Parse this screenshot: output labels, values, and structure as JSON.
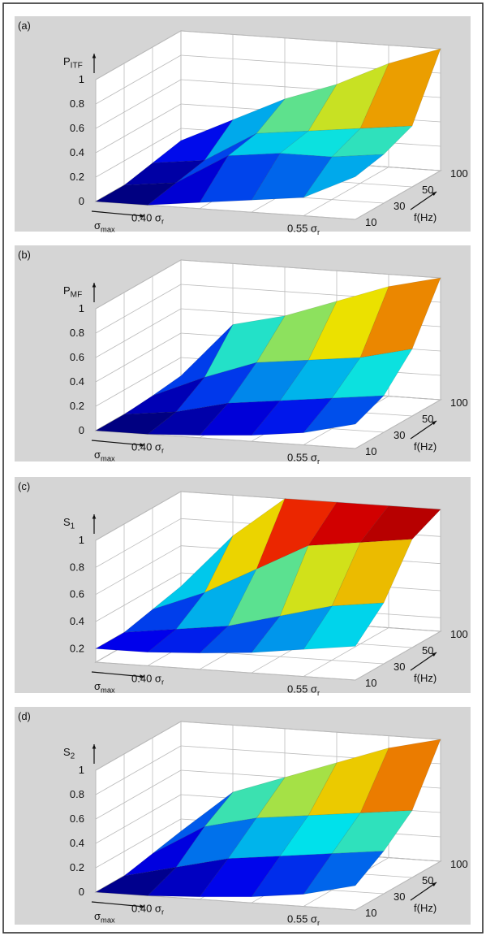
{
  "chart_data": [
    {
      "type": "surface",
      "panel_label": "(a)",
      "z_label": {
        "main": "P",
        "sub": "ITF"
      },
      "x_label": {
        "main": "σ",
        "sub": "max"
      },
      "x_categories": [
        null,
        {
          "main": "0.40 σ",
          "sub": "r"
        },
        null,
        null,
        {
          "main": "0.55 σ",
          "sub": "r"
        },
        null
      ],
      "y_label": "f(Hz)",
      "y_categories": [
        10,
        30,
        50,
        100
      ],
      "values": [
        [
          0,
          0,
          0.05,
          0.1,
          0.15,
          0.35
        ],
        [
          0,
          0.05,
          0.3,
          0.35,
          0.35,
          0.4
        ],
        [
          0.05,
          0.1,
          0.35,
          0.4,
          0.45,
          0.5
        ],
        [
          0.1,
          0.3,
          0.5,
          0.65,
          0.85,
          1.0
        ]
      ],
      "zlim": [
        0,
        1
      ],
      "zticks": [
        0,
        0.2,
        0.4,
        0.6,
        0.8,
        1
      ],
      "colormap": "jet",
      "grid": true
    },
    {
      "type": "surface",
      "panel_label": "(b)",
      "z_label": {
        "main": "P",
        "sub": "MF"
      },
      "x_label": {
        "main": "σ",
        "sub": "max"
      },
      "x_categories": [
        null,
        {
          "main": "0.40 σ",
          "sub": "r"
        },
        null,
        null,
        {
          "main": "0.55 σ",
          "sub": "r"
        },
        null
      ],
      "y_label": "f(Hz)",
      "y_categories": [
        10,
        30,
        50,
        100
      ],
      "values": [
        [
          0,
          0,
          0.02,
          0.05,
          0.1,
          0.2
        ],
        [
          0,
          0.05,
          0.15,
          0.2,
          0.25,
          0.3
        ],
        [
          0.02,
          0.2,
          0.35,
          0.4,
          0.45,
          0.55
        ],
        [
          0.05,
          0.5,
          0.6,
          0.75,
          0.9,
          1.0
        ]
      ],
      "zlim": [
        0,
        1
      ],
      "zticks": [
        0,
        0.2,
        0.4,
        0.6,
        0.8,
        1
      ],
      "colormap": "jet",
      "grid": true
    },
    {
      "type": "surface",
      "panel_label": "(c)",
      "z_label": {
        "main": "S",
        "sub": "1"
      },
      "x_label": {
        "main": "σ",
        "sub": "max"
      },
      "x_categories": [
        null,
        {
          "main": "0.40 σ",
          "sub": "r"
        },
        null,
        null,
        {
          "main": "0.55 σ",
          "sub": "r"
        },
        null
      ],
      "y_label": "f(Hz)",
      "y_categories": [
        10,
        30,
        50,
        100
      ],
      "values": [
        [
          0.2,
          0.2,
          0.22,
          0.25,
          0.3,
          0.35
        ],
        [
          0.2,
          0.25,
          0.3,
          0.4,
          0.5,
          0.55
        ],
        [
          0.25,
          0.4,
          0.6,
          0.8,
          0.85,
          0.9
        ],
        [
          0.3,
          0.7,
          1.0,
          1.0,
          1.0,
          1.0
        ]
      ],
      "zlim": [
        0.1,
        1
      ],
      "zticks": [
        0.2,
        0.4,
        0.6,
        0.8,
        1
      ],
      "colormap": "jet",
      "grid": true
    },
    {
      "type": "surface",
      "panel_label": "(d)",
      "z_label": {
        "main": "S",
        "sub": "2"
      },
      "x_label": {
        "main": "σ",
        "sub": "max"
      },
      "x_categories": [
        null,
        {
          "main": "0.40 σ",
          "sub": "r"
        },
        null,
        null,
        {
          "main": "0.55 σ",
          "sub": "r"
        },
        null
      ],
      "y_label": "f(Hz)",
      "y_categories": [
        10,
        30,
        50,
        100
      ],
      "values": [
        [
          0,
          0,
          0.02,
          0.05,
          0.1,
          0.2
        ],
        [
          0,
          0.1,
          0.2,
          0.25,
          0.3,
          0.35
        ],
        [
          0.05,
          0.3,
          0.4,
          0.45,
          0.5,
          0.55
        ],
        [
          0.1,
          0.45,
          0.6,
          0.75,
          0.9,
          1.0
        ]
      ],
      "zlim": [
        0,
        1
      ],
      "zticks": [
        0,
        0.2,
        0.4,
        0.6,
        0.8,
        1
      ],
      "colormap": "jet",
      "grid": true
    }
  ]
}
